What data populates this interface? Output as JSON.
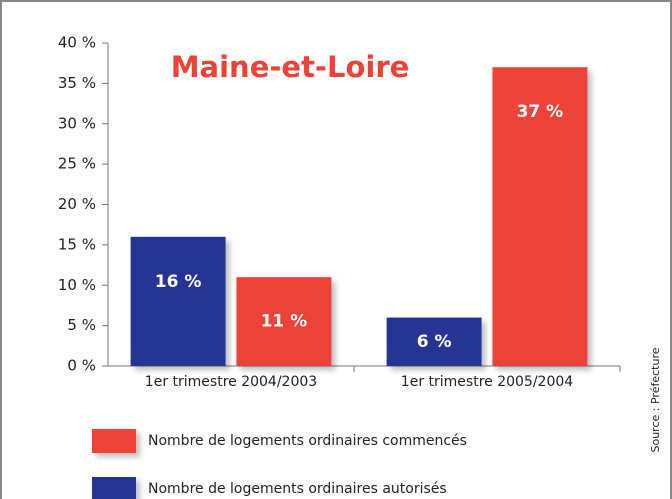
{
  "chart_data": {
    "type": "bar",
    "title": "Maine-et-Loire",
    "source": "Source : Préfecture",
    "categories": [
      "1er trimestre 2004/2003",
      "1er trimestre 2005/2004"
    ],
    "series": [
      {
        "name": "Nombre de logements ordinaires autorisés",
        "color": "#283593",
        "values": [
          16,
          6
        ],
        "value_labels": [
          "16 %",
          "6 %"
        ]
      },
      {
        "name": "Nombre de logements ordinaires commencés",
        "color": "#ec4237",
        "values": [
          11,
          37
        ],
        "value_labels": [
          "11 %",
          "37 %"
        ]
      }
    ],
    "ylim": [
      0,
      40
    ],
    "yticks": [
      {
        "value": 0,
        "label": "0 %"
      },
      {
        "value": 5,
        "label": "5 %"
      },
      {
        "value": 10,
        "label": "10 %"
      },
      {
        "value": 15,
        "label": "15 %"
      },
      {
        "value": 20,
        "label": "20 %"
      },
      {
        "value": 25,
        "label": "25 %"
      },
      {
        "value": 30,
        "label": "30 %"
      },
      {
        "value": 35,
        "label": "35 %"
      },
      {
        "value": 40,
        "label": "40 %"
      }
    ],
    "grid": false
  }
}
